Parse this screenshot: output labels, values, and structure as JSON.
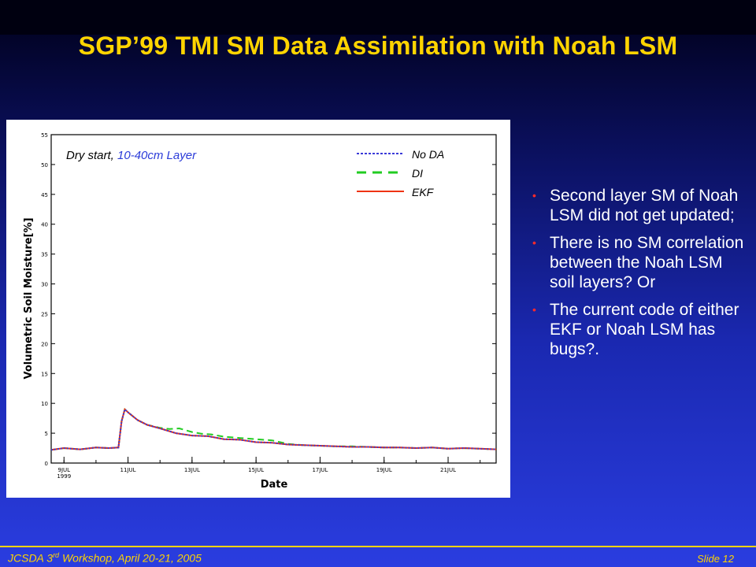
{
  "slide": {
    "title": "SGP’99 TMI SM Data Assimilation with Noah LSM",
    "bullets": [
      "Second layer SM of Noah LSM did not get updated;",
      "There is no SM correlation between the Noah LSM soil layers? Or",
      "The current code of either EKF or Noah LSM has bugs?."
    ],
    "footer": {
      "workshop_prefix": "JCSDA 3",
      "workshop_sup": "rd",
      "workshop_suffix": " Workshop, April 20-21, 2005",
      "slide_number": "Slide 12"
    },
    "colors": {
      "title": "#ffd400",
      "bullet_marker": "#ff2a2a",
      "footer": "#ffd400"
    }
  },
  "chart_data": {
    "type": "line",
    "annotation_part1": "Dry start, ",
    "annotation_part2": "10-40cm Layer",
    "xlabel": "Date",
    "ylabel": "Volumetric Soil Moisture[%]",
    "x_unit": "day of July 1999",
    "xlim": [
      8.6,
      22.5
    ],
    "ylim": [
      0,
      55
    ],
    "yticks": [
      0,
      5,
      10,
      15,
      20,
      25,
      30,
      35,
      40,
      45,
      50,
      55
    ],
    "xticks": [
      {
        "x": 9,
        "label": "9JUL",
        "sublabel": "1999"
      },
      {
        "x": 11,
        "label": "11JUL"
      },
      {
        "x": 13,
        "label": "13JUL"
      },
      {
        "x": 15,
        "label": "15JUL"
      },
      {
        "x": 17,
        "label": "17JUL"
      },
      {
        "x": 19,
        "label": "19JUL"
      },
      {
        "x": 21,
        "label": "21JUL"
      }
    ],
    "legend_position": "top-right",
    "series": [
      {
        "name": "No DA",
        "color": "#3a3ad8",
        "style": "dotted",
        "x": [
          8.6,
          9.0,
          9.5,
          10.0,
          10.4,
          10.7,
          10.8,
          10.9,
          11.0,
          11.3,
          11.6,
          12.0,
          12.5,
          13.0,
          13.5,
          14.0,
          14.5,
          15.0,
          15.5,
          16.0,
          16.5,
          17.0,
          17.5,
          18.0,
          18.5,
          19.0,
          19.5,
          20.0,
          20.5,
          21.0,
          21.5,
          22.0,
          22.5
        ],
        "y": [
          2.2,
          2.5,
          2.3,
          2.6,
          2.5,
          2.6,
          7.0,
          9.0,
          8.5,
          7.2,
          6.4,
          5.8,
          5.0,
          4.6,
          4.5,
          4.0,
          3.9,
          3.5,
          3.4,
          3.1,
          3.0,
          2.9,
          2.8,
          2.7,
          2.7,
          2.6,
          2.6,
          2.5,
          2.6,
          2.4,
          2.5,
          2.4,
          2.3
        ]
      },
      {
        "name": "DI",
        "color": "#22cc22",
        "style": "dashed",
        "x": [
          8.6,
          9.0,
          9.5,
          10.0,
          10.4,
          10.7,
          10.8,
          10.9,
          11.0,
          11.3,
          11.6,
          12.0,
          12.3,
          12.6,
          13.0,
          13.3,
          13.6,
          14.0,
          14.5,
          15.0,
          15.5,
          16.0,
          16.5,
          17.0,
          17.5,
          18.0,
          18.5,
          19.0,
          19.5,
          20.0,
          20.5,
          21.0,
          21.5,
          22.0,
          22.5
        ],
        "y": [
          2.2,
          2.5,
          2.3,
          2.6,
          2.5,
          2.6,
          7.0,
          9.0,
          8.5,
          7.2,
          6.4,
          5.9,
          5.7,
          5.8,
          5.2,
          4.9,
          4.8,
          4.4,
          4.2,
          4.0,
          3.8,
          3.2,
          3.0,
          2.9,
          2.8,
          2.8,
          2.7,
          2.6,
          2.6,
          2.5,
          2.6,
          2.4,
          2.5,
          2.4,
          2.3
        ]
      },
      {
        "name": "EKF",
        "color": "#ee3311",
        "style": "solid",
        "x": [
          8.6,
          9.0,
          9.5,
          10.0,
          10.4,
          10.7,
          10.8,
          10.9,
          11.0,
          11.3,
          11.6,
          12.0,
          12.5,
          13.0,
          13.5,
          14.0,
          14.5,
          15.0,
          15.5,
          16.0,
          16.5,
          17.0,
          17.5,
          18.0,
          18.5,
          19.0,
          19.5,
          20.0,
          20.5,
          21.0,
          21.5,
          22.0,
          22.5
        ],
        "y": [
          2.2,
          2.5,
          2.3,
          2.6,
          2.5,
          2.6,
          7.0,
          9.0,
          8.5,
          7.2,
          6.4,
          5.8,
          5.0,
          4.6,
          4.5,
          4.0,
          3.9,
          3.5,
          3.4,
          3.1,
          3.0,
          2.9,
          2.8,
          2.7,
          2.7,
          2.6,
          2.6,
          2.5,
          2.6,
          2.4,
          2.5,
          2.4,
          2.3
        ]
      }
    ]
  }
}
